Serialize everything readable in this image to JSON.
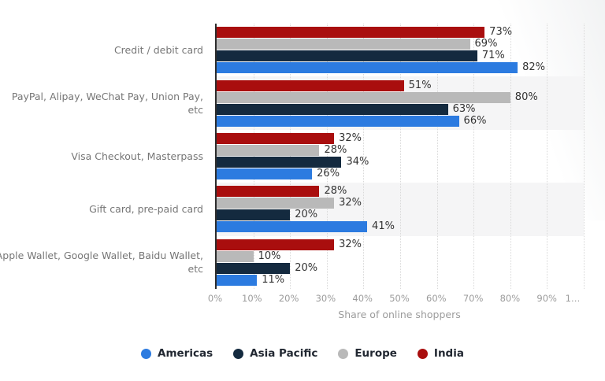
{
  "chart_data": {
    "type": "bar",
    "orientation": "horizontal",
    "title": "",
    "xlabel": "Share of online shoppers",
    "xlim": [
      0,
      100
    ],
    "grid": "vertical-dotted",
    "legend_position": "bottom",
    "categories": [
      "Credit / debit card",
      "PayPal, Alipay, WeChat Pay, Union Pay, etc",
      "Visa Checkout, Masterpass",
      "Gift card, pre-paid card",
      "Apple Wallet, Google Wallet, Baidu Wallet, etc"
    ],
    "category_label_lines": [
      [
        "Credit / debit card"
      ],
      [
        "PayPal, Alipay, WeChat Pay, Union Pay,",
        "etc"
      ],
      [
        "Visa Checkout, Masterpass"
      ],
      [
        "Gift card, pre-paid card"
      ],
      [
        "Apple Wallet, Google Wallet, Baidu Wallet,",
        "etc"
      ]
    ],
    "series": [
      {
        "name": "Americas",
        "color": "#2C7BE0",
        "values": [
          82,
          66,
          26,
          41,
          11
        ]
      },
      {
        "name": "Asia Pacific",
        "color": "#142A3F",
        "values": [
          71,
          63,
          34,
          20,
          20
        ]
      },
      {
        "name": "Europe",
        "color": "#B9B9B9",
        "values": [
          69,
          80,
          28,
          32,
          10
        ]
      },
      {
        "name": "India",
        "color": "#A90E0E",
        "values": [
          73,
          51,
          32,
          28,
          32
        ]
      }
    ],
    "bar_order_top_to_bottom": [
      "India",
      "Europe",
      "Asia Pacific",
      "Americas"
    ],
    "value_suffix": "%",
    "x_ticks": [
      "0%",
      "10%",
      "20%",
      "30%",
      "40%",
      "50%",
      "60%",
      "70%",
      "80%",
      "90%",
      "1…"
    ],
    "colors": {
      "alt_band_background": "#f5f5f6",
      "axis_line": "#2d2d2d",
      "gridline": "#d9d9d9",
      "category_label_text": "#767676",
      "value_label_text": "#333333",
      "tick_label_text": "#9c9c9c",
      "legend_text": "#222832"
    }
  }
}
